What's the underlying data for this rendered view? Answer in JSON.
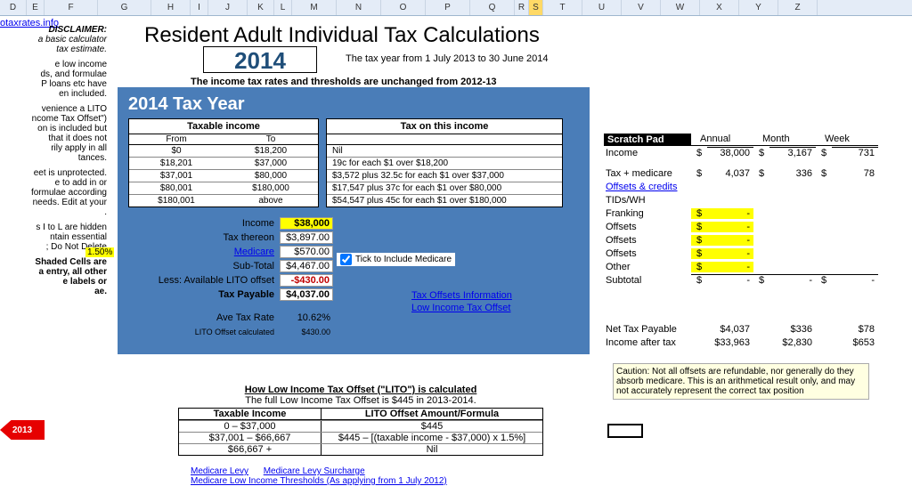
{
  "columns": [
    "D",
    "E",
    "F",
    "G",
    "H",
    "I",
    "J",
    "K",
    "L",
    "M",
    "N",
    "O",
    "P",
    "Q",
    "R",
    "S",
    "T",
    "U",
    "V",
    "W",
    "X",
    "Y",
    "Z"
  ],
  "selected_column_index": 15,
  "top_link": "otaxrates.info",
  "disclaimer": {
    "title": "DISCLAIMER:",
    "line1": "a basic calculator",
    "line2": "tax estimate.",
    "p1": "e low income\nds, and formulae\nP loans etc have\nen included.",
    "p2": "venience a LITO\nncome Tax Offset\")\non is included but\nthat it does not\nrily apply in all\ntances.",
    "p3": "eet is unprotected.\ne to add in or\nformulae according\nneeds. Edit at your\n.",
    "p4": "s I to L are hidden\nntain essential\n; Do Not Delete",
    "p5": "Shaded Cells are\na entry, all other\ne labels or\nae."
  },
  "title": "Resident Adult Individual Tax Calculations",
  "year": "2014",
  "year_desc": "The tax year from 1 July 2013 to 30 June 2014",
  "subnote": "The income tax rates and thresholds are unchanged from 2012-13",
  "panel_title": "2014 Tax Year",
  "tax_brackets": {
    "header1": "Taxable income",
    "header2": "Tax on this income",
    "sub_from": "From",
    "sub_to": "To",
    "rows": [
      {
        "from": "$0",
        "to": "$18,200",
        "tax": "Nil"
      },
      {
        "from": "$18,201",
        "to": "$37,000",
        "tax": "19c for each $1 over $18,200"
      },
      {
        "from": "$37,001",
        "to": "$80,000",
        "tax": "$3,572 plus 32.5c for each $1 over $37,000"
      },
      {
        "from": "$80,001",
        "to": "$180,000",
        "tax": "$17,547 plus 37c for each $1 over $80,000"
      },
      {
        "from": "$180,001",
        "to": "above",
        "tax": "$54,547 plus 45c for each $1 over $180,000"
      }
    ]
  },
  "calc": {
    "income_lbl": "Income",
    "income_val": "$38,000",
    "tax_thereon_lbl": "Tax thereon",
    "tax_thereon_val": "$3,897.00",
    "medicare_pct": "1.50%",
    "medicare_lbl": "Medicare",
    "medicare_val": "$570.00",
    "subtotal_lbl": "Sub-Total",
    "subtotal_val": "$4,467.00",
    "lito_lbl": "Less: Available LITO offset",
    "lito_val": "-$430.00",
    "payable_lbl": "Tax Payable",
    "payable_val": "$4,037.00",
    "avg_lbl": "Ave Tax Rate",
    "avg_val": "10.62%",
    "litocalc_lbl": "LITO Offset calculated",
    "litocalc_val": "$430.00",
    "tick_label": "Tick to Include Medicare",
    "link1": "Tax Offsets Information",
    "link2": "Low Income Tax Offset"
  },
  "lito": {
    "title": "How Low Income Tax Offset (\"LITO\") is calculated",
    "sub": "The full Low Income Tax Offset is $445 in 2013-2014.",
    "h1": "Taxable Income",
    "h2": "LITO Offset Amount/Formula",
    "rows": [
      {
        "a": "0 – $37,000",
        "b": "$445"
      },
      {
        "a": "$37,001 – $66,667",
        "b": "$445 – [(taxable income - $37,000) x 1.5%]"
      },
      {
        "a": "$66,667 +",
        "b": "Nil"
      }
    ]
  },
  "bottom_links": {
    "l1": "Medicare Levy",
    "l2": "Medicare Levy Surcharge",
    "l3": "Medicare Low Income Thresholds (As applying from 1 July 2012)"
  },
  "scratch": {
    "title": "Scratch Pad",
    "cols": [
      "Annual",
      "Month",
      "Week"
    ],
    "income_lbl": "Income",
    "income": [
      "38,000",
      "3,167",
      "731"
    ],
    "taxmed_lbl": "Tax + medicare",
    "taxmed": [
      "4,037",
      "336",
      "78"
    ],
    "offsets_link": "Offsets & credits",
    "rows": [
      "TIDs/WH",
      "Franking",
      "Offsets",
      "Offsets",
      "Offsets",
      "Other"
    ],
    "subtotal_lbl": "Subtotal",
    "net_lbl": "Net Tax Payable",
    "net": [
      "$4,037",
      "$336",
      "$78"
    ],
    "after_lbl": "Income after tax",
    "after": [
      "$33,963",
      "$2,830",
      "$653"
    ]
  },
  "caution": "Caution: Not all offsets are refundable, nor generally do they absorb medicare. This is an arithmetical result only, and may not accurately represent the correct tax position",
  "arrow": "2013"
}
